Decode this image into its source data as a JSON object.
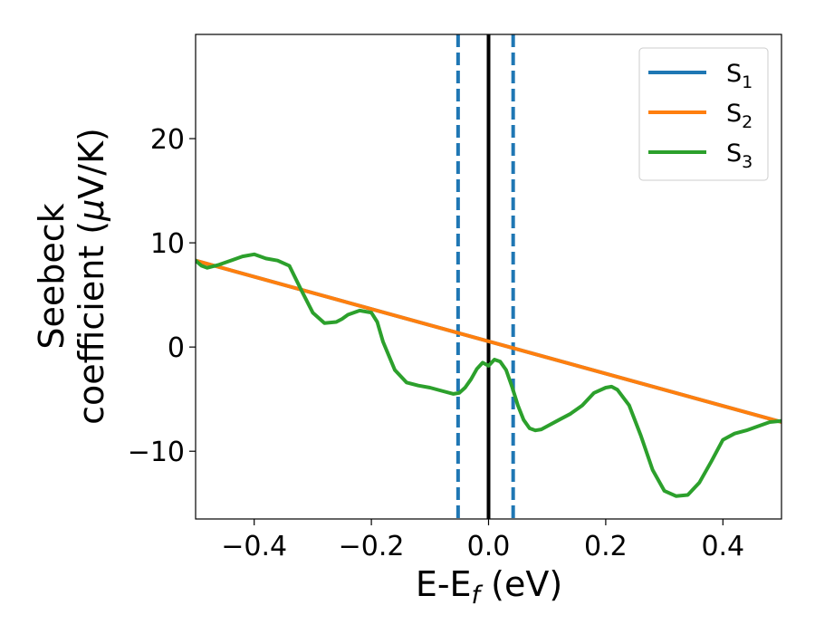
{
  "chart_data": {
    "type": "line",
    "xlabel": {
      "main": "E-E",
      "sub": "f",
      "tail": " (eV)"
    },
    "ylabel": {
      "line1": "Seebeck",
      "line2_main": "coefficient  (",
      "line2_mu": "μ",
      "line2_tail": "V/K)"
    },
    "xlim": [
      -0.5,
      0.5
    ],
    "ylim": [
      -16.5,
      30
    ],
    "xticks": [
      -0.4,
      -0.2,
      0.0,
      0.2,
      0.4
    ],
    "xtick_labels": [
      "−0.4",
      "−0.2",
      "0.0",
      "0.2",
      "0.4"
    ],
    "yticks": [
      -10,
      0,
      10,
      20
    ],
    "ytick_labels": [
      "−10",
      "0",
      "10",
      "20"
    ],
    "grid": false,
    "legend_position": "top-right",
    "series": [
      {
        "name_main": "S",
        "name_sub": "1",
        "color": "#1f77b4",
        "x": [
          -0.5,
          0.5
        ],
        "y": [
          8.3,
          -7.2
        ]
      },
      {
        "name_main": "S",
        "name_sub": "2",
        "color": "#ff7f0e",
        "x": [
          -0.5,
          0.5
        ],
        "y": [
          8.3,
          -7.2
        ]
      },
      {
        "name_main": "S",
        "name_sub": "3",
        "color": "#2ca02c",
        "x": [
          -0.5,
          -0.49,
          -0.48,
          -0.46,
          -0.44,
          -0.42,
          -0.4,
          -0.38,
          -0.36,
          -0.34,
          -0.32,
          -0.3,
          -0.28,
          -0.26,
          -0.25,
          -0.24,
          -0.22,
          -0.2,
          -0.19,
          -0.18,
          -0.16,
          -0.14,
          -0.12,
          -0.1,
          -0.08,
          -0.06,
          -0.05,
          -0.04,
          -0.03,
          -0.02,
          -0.01,
          0.0,
          0.01,
          0.02,
          0.03,
          0.04,
          0.05,
          0.06,
          0.07,
          0.08,
          0.09,
          0.1,
          0.12,
          0.14,
          0.16,
          0.18,
          0.2,
          0.21,
          0.22,
          0.24,
          0.26,
          0.28,
          0.3,
          0.32,
          0.34,
          0.36,
          0.38,
          0.4,
          0.42,
          0.44,
          0.46,
          0.48,
          0.5
        ],
        "y": [
          8.3,
          7.8,
          7.6,
          7.9,
          8.3,
          8.7,
          8.9,
          8.5,
          8.3,
          7.8,
          5.5,
          3.3,
          2.3,
          2.4,
          2.7,
          3.1,
          3.5,
          3.3,
          2.4,
          0.5,
          -2.2,
          -3.4,
          -3.7,
          -3.9,
          -4.2,
          -4.5,
          -4.4,
          -3.9,
          -3.1,
          -2.1,
          -1.5,
          -1.8,
          -1.2,
          -1.4,
          -2.2,
          -3.8,
          -5.6,
          -7.0,
          -7.8,
          -8.0,
          -7.9,
          -7.6,
          -7.0,
          -6.4,
          -5.6,
          -4.4,
          -3.9,
          -3.8,
          -4.1,
          -5.6,
          -8.5,
          -11.8,
          -13.8,
          -14.3,
          -14.2,
          -13.0,
          -11.0,
          -8.9,
          -8.3,
          -8.0,
          -7.6,
          -7.2,
          -7.1
        ]
      }
    ],
    "vlines": [
      {
        "x": -0.052,
        "style": "dashed",
        "color": "#1f77b4"
      },
      {
        "x": 0.0,
        "style": "solid",
        "color": "#000000"
      },
      {
        "x": 0.042,
        "style": "dashed",
        "color": "#1f77b4"
      }
    ]
  }
}
